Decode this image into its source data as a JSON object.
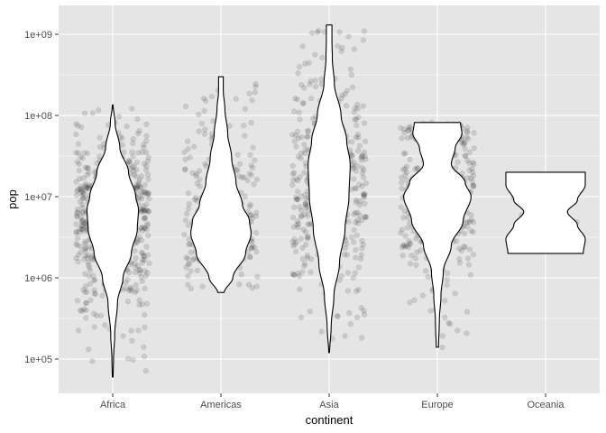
{
  "chart_data": {
    "type": "violin",
    "xlabel": "continent",
    "ylabel": "pop",
    "y_scale": "log10",
    "ylim": [
      40000,
      2000000000
    ],
    "y_ticks": [
      {
        "value": 100000,
        "label": "1e+05"
      },
      {
        "value": 1000000,
        "label": "1e+06"
      },
      {
        "value": 10000000,
        "label": "1e+07"
      },
      {
        "value": 100000000,
        "label": "1e+08"
      },
      {
        "value": 1000000000,
        "label": "1e+09"
      }
    ],
    "categories": [
      "Africa",
      "Americas",
      "Asia",
      "Europe",
      "Oceania"
    ],
    "grid": true,
    "background": "#e5e5e5",
    "point_color": "#000000",
    "point_alpha": 0.12,
    "violins": [
      {
        "category": "Africa",
        "min": 60000,
        "max": 135000000,
        "profile": [
          [
            60000,
            0.01
          ],
          [
            100000,
            0.02
          ],
          [
            200000,
            0.05
          ],
          [
            500000,
            0.12
          ],
          [
            1000000,
            0.26
          ],
          [
            2000000,
            0.47
          ],
          [
            4000000,
            0.62
          ],
          [
            7000000,
            0.65
          ],
          [
            10000000,
            0.58
          ],
          [
            20000000,
            0.4
          ],
          [
            40000000,
            0.18
          ],
          [
            80000000,
            0.06
          ],
          [
            135000000,
            0.01
          ]
        ],
        "points": 624
      },
      {
        "category": "Americas",
        "min": 660000,
        "max": 300000000,
        "profile": [
          [
            660000,
            0.08
          ],
          [
            1000000,
            0.3
          ],
          [
            2000000,
            0.62
          ],
          [
            3500000,
            0.76
          ],
          [
            5000000,
            0.72
          ],
          [
            8000000,
            0.54
          ],
          [
            15000000,
            0.38
          ],
          [
            30000000,
            0.27
          ],
          [
            60000000,
            0.17
          ],
          [
            120000000,
            0.1
          ],
          [
            200000000,
            0.06
          ],
          [
            300000000,
            0.06
          ]
        ],
        "points": 300
      },
      {
        "category": "Asia",
        "min": 120000,
        "max": 1300000000,
        "profile": [
          [
            120000,
            0.01
          ],
          [
            250000,
            0.05
          ],
          [
            600000,
            0.12
          ],
          [
            1500000,
            0.26
          ],
          [
            4000000,
            0.4
          ],
          [
            10000000,
            0.5
          ],
          [
            25000000,
            0.53
          ],
          [
            50000000,
            0.44
          ],
          [
            100000000,
            0.3
          ],
          [
            250000000,
            0.13
          ],
          [
            500000000,
            0.08
          ],
          [
            900000000,
            0.07
          ],
          [
            1300000000,
            0.07
          ]
        ],
        "points": 396
      },
      {
        "category": "Europe",
        "min": 140000,
        "max": 82000000,
        "profile": [
          [
            140000,
            0.03
          ],
          [
            300000,
            0.05
          ],
          [
            600000,
            0.09
          ],
          [
            1200000,
            0.15
          ],
          [
            2500000,
            0.35
          ],
          [
            5000000,
            0.65
          ],
          [
            10000000,
            0.85
          ],
          [
            15000000,
            0.7
          ],
          [
            25000000,
            0.35
          ],
          [
            40000000,
            0.45
          ],
          [
            60000000,
            0.62
          ],
          [
            82000000,
            0.58
          ]
        ],
        "points": 360
      },
      {
        "category": "Oceania",
        "min": 2000000,
        "max": 20000000,
        "profile": [
          [
            2000000,
            0.95
          ],
          [
            3000000,
            1.0
          ],
          [
            4500000,
            0.8
          ],
          [
            6500000,
            0.55
          ],
          [
            9000000,
            0.8
          ],
          [
            14000000,
            1.0
          ],
          [
            20000000,
            1.0
          ]
        ],
        "points": 24
      }
    ]
  }
}
